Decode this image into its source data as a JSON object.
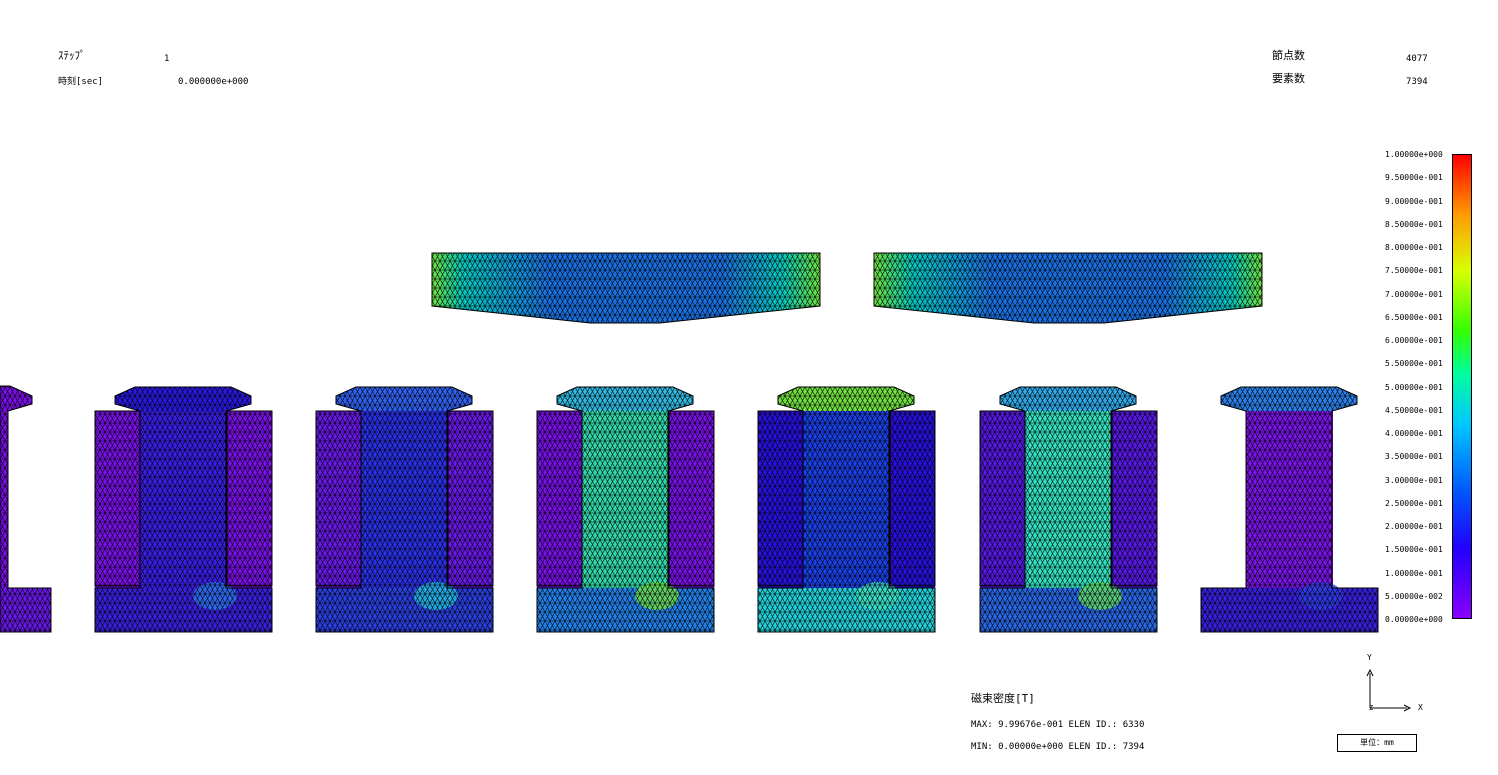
{
  "header": {
    "step_label": "ｽﾃｯﾌﾟ",
    "step_value": "1",
    "time_label": "時刻[sec]",
    "time_value": "0.000000e+000",
    "nodes_label": "節点数",
    "nodes_value": "4077",
    "elements_label": "要素数",
    "elements_value": "7394"
  },
  "colorbar": {
    "ticks": [
      "1.00000e+000",
      "9.50000e-001",
      "9.00000e-001",
      "8.50000e-001",
      "8.00000e-001",
      "7.50000e-001",
      "7.00000e-001",
      "6.50000e-001",
      "6.00000e-001",
      "5.50000e-001",
      "5.00000e-001",
      "4.50000e-001",
      "4.00000e-001",
      "3.50000e-001",
      "3.00000e-001",
      "2.50000e-001",
      "2.00000e-001",
      "1.50000e-001",
      "1.00000e-001",
      "5.00000e-002",
      "0.00000e+000"
    ],
    "colors": [
      "#8a00ff",
      "#2200ff",
      "#0055ff",
      "#00c8ff",
      "#00ff9c",
      "#33ff00",
      "#d8ff00",
      "#ff9c00",
      "#ff0000"
    ]
  },
  "result": {
    "quantity_label": "磁束密度[T]",
    "max_line": "MAX: 9.99676e-001 ELEN ID.: 6330",
    "min_line": "MIN: 0.00000e+000 ELEN ID.: 7394"
  },
  "axes": {
    "y_label": "Y",
    "x_label": "X",
    "z_label": "Z"
  },
  "unit_label": "単位：mm"
}
